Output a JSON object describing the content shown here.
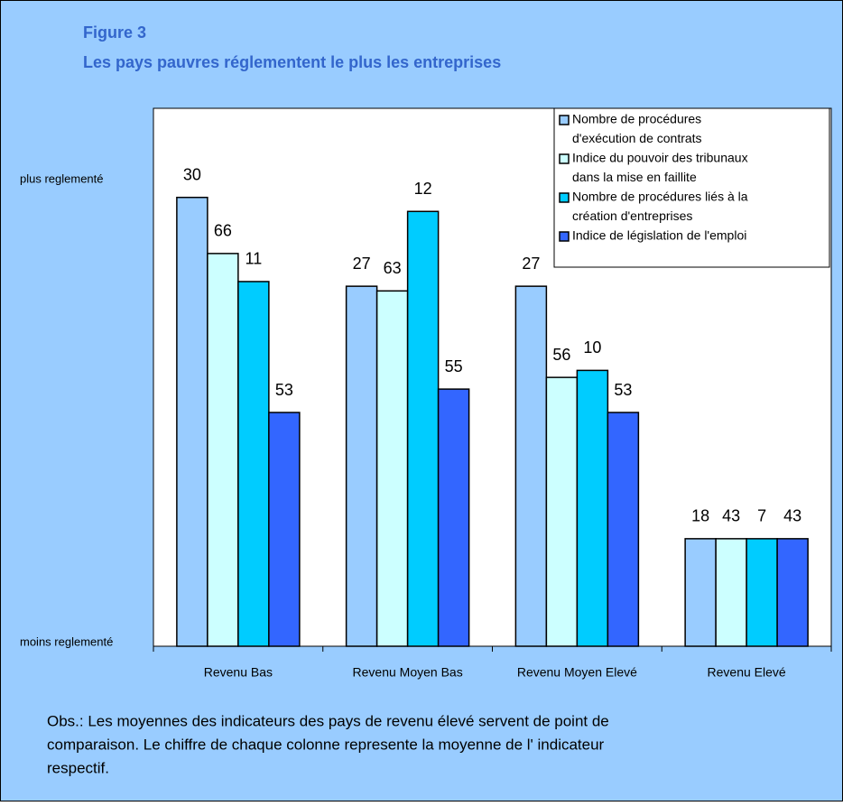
{
  "chart_data": {
    "type": "bar",
    "title": "Figure 3",
    "subtitle": "Les pays pauvres réglementent le plus les entreprises",
    "categories": [
      "Revenu Bas",
      "Revenu Moyen Bas",
      "Revenu Moyen Elevé",
      "Revenu Elevé"
    ],
    "ylim": [
      0,
      100
    ],
    "yticks": [
      {
        "value": 100,
        "label": "plus reglementé"
      },
      {
        "value": 0,
        "label": "moins reglementé"
      }
    ],
    "series": [
      {
        "name": [
          "Nombre de procédures",
          "d'exécution de contrats"
        ],
        "color": "#99ccff",
        "values": [
          30,
          27,
          27,
          18
        ],
        "heights": [
          96,
          77,
          77,
          23
        ]
      },
      {
        "name": [
          "Indice du pouvoir des tribunaux",
          "dans la mise en faillite"
        ],
        "color": "#ccffff",
        "values": [
          66,
          63,
          56,
          43
        ],
        "heights": [
          84,
          76,
          57.5,
          23
        ]
      },
      {
        "name": [
          "Nombre de procédures liés à la",
          "création d'entreprises"
        ],
        "color": "#00ccff",
        "values": [
          11,
          12,
          10,
          7
        ],
        "heights": [
          78,
          93,
          59,
          23
        ]
      },
      {
        "name": [
          "Indice de législation de l'emploi"
        ],
        "color": "#3366ff",
        "values": [
          53,
          55,
          53,
          43
        ],
        "heights": [
          50,
          55,
          50,
          23
        ]
      }
    ],
    "legend": "top-right",
    "note": [
      "Obs.: Les moyennes des indicateurs des pays de revenu élevé servent de point de",
      "comparaison. Le chiffre de chaque colonne represente la moyenne de l' indicateur",
      "respectif."
    ]
  }
}
